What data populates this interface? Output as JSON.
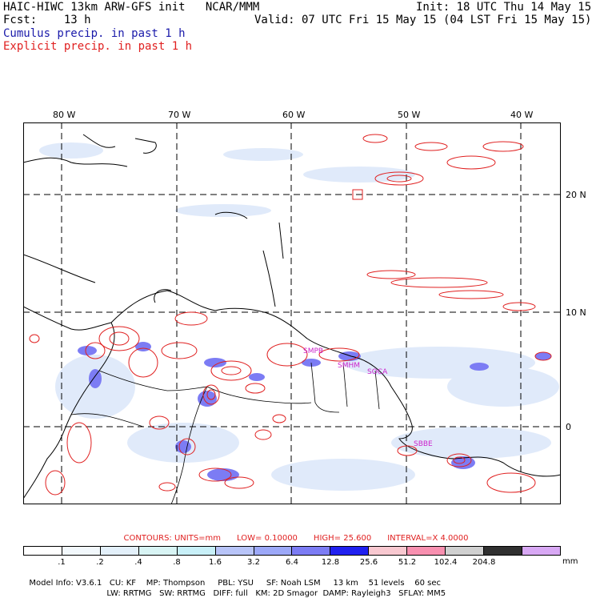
{
  "header": {
    "line1_left": "HAIC-HIWC 13km ARW-GFS init   NCAR/MMM",
    "line1_right": "Init: 18 UTC Thu 14 May 15",
    "line2_left": "Fcst:    13 h",
    "line2_right": "Valid: 07 UTC Fri 15 May 15 (04 LST Fri 15 May 15)",
    "cumulus": "Cumulus precip. in past 1 h",
    "explicit": "Explicit precip. in past 1 h"
  },
  "map": {
    "lon_labels": [
      "80 W",
      "70 W",
      "60 W",
      "50 W",
      "40 W"
    ],
    "lat_labels": [
      "20 N",
      "10 N",
      "0"
    ],
    "stations": [
      "SMPB",
      "SMHM",
      "SOCA",
      "SBBE"
    ],
    "colors": {
      "coast": "#000000",
      "grid": "#000000",
      "precip_contour": "#e02020",
      "station": "#cc22cc"
    }
  },
  "contours": {
    "label": "CONTOURS:  UNITS=mm",
    "low": "LOW= 0.10000",
    "high": "HIGH=  25.600",
    "interval": "INTERVAL=X  4.0000"
  },
  "legend": {
    "colors": [
      "#ffffff",
      "#f2f8fc",
      "#e3f0fa",
      "#d8f4f4",
      "#c8f0f8",
      "#b8c4f8",
      "#9ca8f8",
      "#7c7cf4",
      "#2020f0",
      "#f8c8d0",
      "#f890b0",
      "#d0d0d0",
      "#303030",
      "#d8a8f4"
    ],
    "values": [
      ".1",
      ".2",
      ".4",
      ".8",
      "1.6",
      "3.2",
      "6.4",
      "12.8",
      "25.6",
      "51.2",
      "102.4",
      "204.8"
    ],
    "unit": "mm"
  },
  "model_info": {
    "line1": [
      "Model Info: V3.6.1",
      "CU: KF",
      "MP: Thompson",
      "PBL: YSU",
      "SF: Noah LSM",
      "13 km",
      "51 levels",
      "60 sec"
    ],
    "line2": [
      "LW: RRTMG",
      "SW: RRTMG",
      "DIFF: full",
      "KM: 2D Smagor",
      "DAMP: Rayleigh3",
      "SFLAY: MM5"
    ]
  }
}
